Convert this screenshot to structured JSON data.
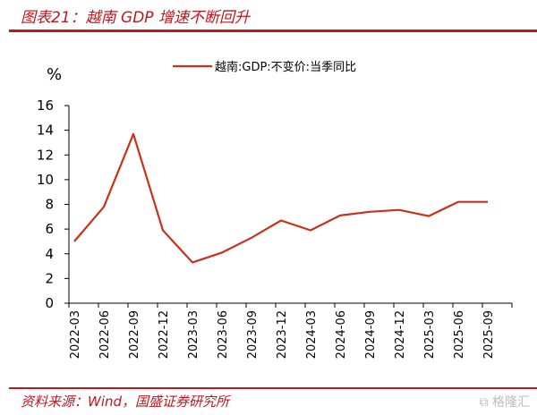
{
  "header": {
    "title": "图表21：越南 GDP 增速不断回升"
  },
  "footer": {
    "source": "资料来源：Wind，国盛证券研究所",
    "watermark": "格隆汇"
  },
  "colors": {
    "accent": "#c0161c",
    "series": "#c8321a",
    "axis": "#000000"
  },
  "chart_data": {
    "type": "line",
    "title": "图表21：越南 GDP 增速不断回升",
    "xlabel": "",
    "ylabel": "%",
    "ylim": [
      0,
      16
    ],
    "yticks": [
      "0",
      "2",
      "4",
      "6",
      "8",
      "10",
      "12",
      "14",
      "16"
    ],
    "ytick_values": [
      0,
      2,
      4,
      6,
      8,
      10,
      12,
      14,
      16
    ],
    "grid": false,
    "legend_position": "top-center",
    "categories": [
      "2022-03",
      "2022-06",
      "2022-09",
      "2022-12",
      "2023-03",
      "2023-06",
      "2023-09",
      "2023-12",
      "2024-03",
      "2024-06",
      "2024-09",
      "2024-12",
      "2025-03",
      "2025-06",
      "2025-09"
    ],
    "series": [
      {
        "name": "越南:GDP:不变价:当季同比",
        "values": [
          5.0,
          7.8,
          13.7,
          5.9,
          3.3,
          4.1,
          5.3,
          6.7,
          5.9,
          7.1,
          7.4,
          7.55,
          7.05,
          8.2,
          8.2
        ]
      }
    ]
  }
}
